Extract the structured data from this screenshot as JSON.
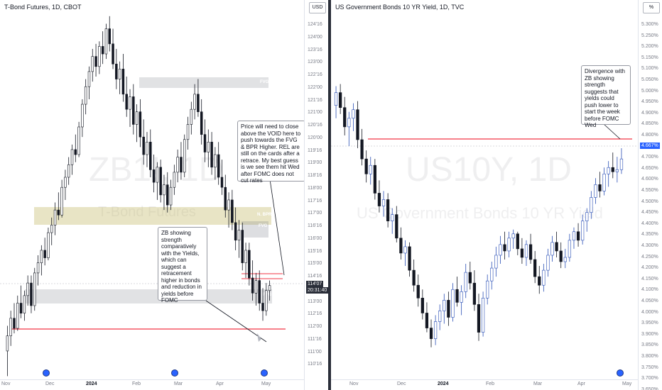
{
  "left_chart": {
    "title": "T-Bond Futures, 1D, CBOT",
    "currency_button": "USD",
    "watermark_symbol": "ZB1!, 1D",
    "watermark_name": "T-Bond Futures",
    "price_ticks": [
      "124'16",
      "124'00",
      "123'16",
      "123'00",
      "122'16",
      "122'00",
      "121'16",
      "121'00",
      "120'16",
      "120'00",
      "119'16",
      "119'00",
      "118'16",
      "118'00",
      "117'16",
      "117'00",
      "116'16",
      "116'00",
      "115'16",
      "115'00",
      "114'16",
      "113'16",
      "113'00",
      "112'16",
      "112'00",
      "111'16",
      "111'00",
      "110'16"
    ],
    "last_price": "114'07",
    "countdown": "20:31:40",
    "time_ticks": [
      "Nov",
      "Dec",
      "2024",
      "Feb",
      "Mar",
      "Apr",
      "May"
    ],
    "zones": {
      "fvg_top": "FVG",
      "bpr": "N. BPR",
      "fvg_mid": "FVG",
      "fvg_low": "FVG"
    },
    "note_top": "Price will need to close above the VOID here to push towards the FVG & BPR Higher. REL are still on the cards after a retrace. My best guess is we see them hit Wed after FOMC does not cut rates",
    "note_bottom": "ZB showing strength comparatively with the Yields, which can suggest a retracement higher in bonds and reduction in yields before FOMC",
    "candles": [
      {
        "o": 111.6,
        "h": 112.6,
        "l": 110.6,
        "c": 112.2
      },
      {
        "o": 112.2,
        "h": 113.2,
        "l": 111.8,
        "c": 112.9
      },
      {
        "o": 112.9,
        "h": 113.5,
        "l": 112.3,
        "c": 112.5
      },
      {
        "o": 112.5,
        "h": 113.8,
        "l": 112.4,
        "c": 113.5
      },
      {
        "o": 113.5,
        "h": 114.2,
        "l": 112.9,
        "c": 113.1
      },
      {
        "o": 113.1,
        "h": 114.0,
        "l": 112.8,
        "c": 113.8
      },
      {
        "o": 113.8,
        "h": 114.6,
        "l": 113.4,
        "c": 114.3
      },
      {
        "o": 114.3,
        "h": 114.6,
        "l": 113.1,
        "c": 113.4
      },
      {
        "o": 113.4,
        "h": 114.9,
        "l": 113.2,
        "c": 114.7
      },
      {
        "o": 114.7,
        "h": 115.4,
        "l": 114.2,
        "c": 115.1
      },
      {
        "o": 115.1,
        "h": 115.8,
        "l": 114.6,
        "c": 115.6
      },
      {
        "o": 115.6,
        "h": 116.1,
        "l": 115.0,
        "c": 115.3
      },
      {
        "o": 115.3,
        "h": 116.5,
        "l": 115.2,
        "c": 116.3
      },
      {
        "o": 116.3,
        "h": 116.9,
        "l": 115.8,
        "c": 116.6
      },
      {
        "o": 116.6,
        "h": 117.5,
        "l": 116.2,
        "c": 117.2
      },
      {
        "o": 117.2,
        "h": 117.9,
        "l": 116.8,
        "c": 117.0
      },
      {
        "o": 117.0,
        "h": 118.4,
        "l": 116.9,
        "c": 118.1
      },
      {
        "o": 118.1,
        "h": 118.8,
        "l": 117.6,
        "c": 118.5
      },
      {
        "o": 118.5,
        "h": 119.3,
        "l": 118.2,
        "c": 119.0
      },
      {
        "o": 119.0,
        "h": 119.8,
        "l": 118.6,
        "c": 119.6
      },
      {
        "o": 119.6,
        "h": 120.2,
        "l": 119.1,
        "c": 119.4
      },
      {
        "o": 119.4,
        "h": 120.7,
        "l": 119.3,
        "c": 120.5
      },
      {
        "o": 120.5,
        "h": 121.6,
        "l": 120.1,
        "c": 121.4
      },
      {
        "o": 121.4,
        "h": 122.4,
        "l": 121.0,
        "c": 122.1
      },
      {
        "o": 122.1,
        "h": 122.9,
        "l": 121.6,
        "c": 122.7
      },
      {
        "o": 122.7,
        "h": 123.6,
        "l": 122.3,
        "c": 123.3
      },
      {
        "o": 123.3,
        "h": 123.8,
        "l": 122.5,
        "c": 122.9
      },
      {
        "o": 122.9,
        "h": 123.9,
        "l": 122.6,
        "c": 123.7
      },
      {
        "o": 123.7,
        "h": 124.3,
        "l": 123.0,
        "c": 123.4
      },
      {
        "o": 123.4,
        "h": 124.6,
        "l": 123.2,
        "c": 124.4
      },
      {
        "o": 124.4,
        "h": 124.9,
        "l": 123.5,
        "c": 123.8
      },
      {
        "o": 123.8,
        "h": 124.4,
        "l": 122.8,
        "c": 123.0
      },
      {
        "o": 123.0,
        "h": 123.6,
        "l": 122.0,
        "c": 122.4
      },
      {
        "o": 122.4,
        "h": 123.1,
        "l": 121.8,
        "c": 122.8
      },
      {
        "o": 122.8,
        "h": 123.4,
        "l": 121.5,
        "c": 121.8
      },
      {
        "o": 121.8,
        "h": 122.5,
        "l": 120.9,
        "c": 121.2
      },
      {
        "o": 121.2,
        "h": 122.0,
        "l": 120.5,
        "c": 121.7
      },
      {
        "o": 121.7,
        "h": 122.2,
        "l": 120.2,
        "c": 120.6
      },
      {
        "o": 120.6,
        "h": 121.4,
        "l": 119.9,
        "c": 121.1
      },
      {
        "o": 121.1,
        "h": 121.6,
        "l": 119.7,
        "c": 120.1
      },
      {
        "o": 120.1,
        "h": 120.8,
        "l": 119.0,
        "c": 119.4
      },
      {
        "o": 119.4,
        "h": 120.3,
        "l": 118.9,
        "c": 119.9
      },
      {
        "o": 119.9,
        "h": 120.4,
        "l": 118.5,
        "c": 118.8
      },
      {
        "o": 118.8,
        "h": 119.4,
        "l": 117.9,
        "c": 118.3
      },
      {
        "o": 118.3,
        "h": 119.1,
        "l": 117.6,
        "c": 118.9
      },
      {
        "o": 118.9,
        "h": 119.2,
        "l": 117.5,
        "c": 117.8
      },
      {
        "o": 117.8,
        "h": 118.6,
        "l": 117.2,
        "c": 118.2
      },
      {
        "o": 118.2,
        "h": 118.7,
        "l": 117.1,
        "c": 117.4
      },
      {
        "o": 117.4,
        "h": 118.4,
        "l": 117.2,
        "c": 118.1
      },
      {
        "o": 118.1,
        "h": 119.0,
        "l": 117.8,
        "c": 118.7
      },
      {
        "o": 118.7,
        "h": 119.6,
        "l": 118.3,
        "c": 119.3
      },
      {
        "o": 119.3,
        "h": 119.9,
        "l": 118.4,
        "c": 118.7
      },
      {
        "o": 118.7,
        "h": 120.2,
        "l": 118.5,
        "c": 120.0
      },
      {
        "o": 120.0,
        "h": 120.9,
        "l": 119.6,
        "c": 120.6
      },
      {
        "o": 120.6,
        "h": 121.5,
        "l": 120.2,
        "c": 121.2
      },
      {
        "o": 121.2,
        "h": 122.2,
        "l": 120.8,
        "c": 121.8
      },
      {
        "o": 121.8,
        "h": 122.4,
        "l": 120.9,
        "c": 121.1
      },
      {
        "o": 121.1,
        "h": 121.6,
        "l": 119.8,
        "c": 120.2
      },
      {
        "o": 120.2,
        "h": 120.8,
        "l": 119.1,
        "c": 119.5
      },
      {
        "o": 119.5,
        "h": 120.4,
        "l": 118.9,
        "c": 119.9
      },
      {
        "o": 119.9,
        "h": 120.3,
        "l": 118.6,
        "c": 118.9
      },
      {
        "o": 118.9,
        "h": 119.7,
        "l": 118.4,
        "c": 119.4
      },
      {
        "o": 119.4,
        "h": 119.9,
        "l": 118.2,
        "c": 118.5
      },
      {
        "o": 118.5,
        "h": 119.2,
        "l": 117.8,
        "c": 118.1
      },
      {
        "o": 118.1,
        "h": 118.6,
        "l": 116.9,
        "c": 117.2
      },
      {
        "o": 117.2,
        "h": 117.9,
        "l": 116.5,
        "c": 117.6
      },
      {
        "o": 117.6,
        "h": 118.0,
        "l": 116.4,
        "c": 116.7
      },
      {
        "o": 116.7,
        "h": 117.3,
        "l": 115.6,
        "c": 116.0
      },
      {
        "o": 116.0,
        "h": 116.8,
        "l": 115.3,
        "c": 116.4
      },
      {
        "o": 116.4,
        "h": 116.7,
        "l": 114.8,
        "c": 115.1
      },
      {
        "o": 115.1,
        "h": 115.9,
        "l": 114.5,
        "c": 115.6
      },
      {
        "o": 115.6,
        "h": 115.9,
        "l": 114.2,
        "c": 114.5
      },
      {
        "o": 114.5,
        "h": 115.2,
        "l": 113.6,
        "c": 113.9
      },
      {
        "o": 113.9,
        "h": 114.7,
        "l": 113.4,
        "c": 114.4
      },
      {
        "o": 114.4,
        "h": 114.8,
        "l": 113.2,
        "c": 113.5
      },
      {
        "o": 113.5,
        "h": 114.1,
        "l": 112.8,
        "c": 113.2
      },
      {
        "o": 113.2,
        "h": 114.3,
        "l": 113.0,
        "c": 114.0
      },
      {
        "o": 114.0,
        "h": 114.4,
        "l": 113.6,
        "c": 114.2
      }
    ]
  },
  "right_chart": {
    "title": "US Government Bonds 10 YR Yield, 1D, TVC",
    "percent_button": "%",
    "watermark_symbol": "US10Y, 1D",
    "watermark_name": "US Government Bonds 10 YR Yield",
    "price_ticks": [
      "5.300%",
      "5.250%",
      "5.200%",
      "5.150%",
      "5.100%",
      "5.050%",
      "5.000%",
      "4.950%",
      "4.900%",
      "4.850%",
      "4.800%",
      "4.750%",
      "4.700%",
      "4.650%",
      "4.600%",
      "4.550%",
      "4.500%",
      "4.450%",
      "4.400%",
      "4.350%",
      "4.300%",
      "4.250%",
      "4.200%",
      "4.150%",
      "4.100%",
      "4.050%",
      "4.000%",
      "3.950%",
      "3.900%",
      "3.850%",
      "3.800%",
      "3.750%",
      "3.700%",
      "3.650%"
    ],
    "last_price": "4.667%",
    "time_ticks": [
      "Nov",
      "Dec",
      "2024",
      "Feb",
      "Mar",
      "Apr",
      "May"
    ],
    "note": "Divergence with ZB showing strength suggests that yields could push lower to start the week before FOMC Wed",
    "colors": {
      "up": "#2a4fb6",
      "down": "#131722",
      "line": "#f23645"
    },
    "candles": [
      {
        "o": 4.92,
        "h": 5.01,
        "l": 4.86,
        "c": 4.98
      },
      {
        "o": 4.98,
        "h": 5.02,
        "l": 4.88,
        "c": 4.91
      },
      {
        "o": 4.91,
        "h": 4.96,
        "l": 4.78,
        "c": 4.82
      },
      {
        "o": 4.82,
        "h": 4.89,
        "l": 4.73,
        "c": 4.86
      },
      {
        "o": 4.86,
        "h": 4.93,
        "l": 4.8,
        "c": 4.9
      },
      {
        "o": 4.9,
        "h": 4.94,
        "l": 4.72,
        "c": 4.76
      },
      {
        "o": 4.76,
        "h": 4.81,
        "l": 4.64,
        "c": 4.67
      },
      {
        "o": 4.67,
        "h": 4.71,
        "l": 4.56,
        "c": 4.6
      },
      {
        "o": 4.6,
        "h": 4.68,
        "l": 4.55,
        "c": 4.64
      },
      {
        "o": 4.64,
        "h": 4.67,
        "l": 4.48,
        "c": 4.51
      },
      {
        "o": 4.51,
        "h": 4.57,
        "l": 4.42,
        "c": 4.45
      },
      {
        "o": 4.45,
        "h": 4.52,
        "l": 4.4,
        "c": 4.48
      },
      {
        "o": 4.48,
        "h": 4.51,
        "l": 4.35,
        "c": 4.38
      },
      {
        "o": 4.38,
        "h": 4.44,
        "l": 4.32,
        "c": 4.41
      },
      {
        "o": 4.41,
        "h": 4.45,
        "l": 4.28,
        "c": 4.3
      },
      {
        "o": 4.3,
        "h": 4.35,
        "l": 4.2,
        "c": 4.23
      },
      {
        "o": 4.23,
        "h": 4.29,
        "l": 4.17,
        "c": 4.26
      },
      {
        "o": 4.26,
        "h": 4.28,
        "l": 4.12,
        "c": 4.15
      },
      {
        "o": 4.15,
        "h": 4.2,
        "l": 4.05,
        "c": 4.08
      },
      {
        "o": 4.08,
        "h": 4.13,
        "l": 3.98,
        "c": 4.02
      },
      {
        "o": 4.02,
        "h": 4.06,
        "l": 3.92,
        "c": 3.95
      },
      {
        "o": 3.95,
        "h": 4.0,
        "l": 3.86,
        "c": 3.88
      },
      {
        "o": 3.88,
        "h": 3.92,
        "l": 3.79,
        "c": 3.83
      },
      {
        "o": 3.83,
        "h": 3.94,
        "l": 3.8,
        "c": 3.91
      },
      {
        "o": 3.91,
        "h": 3.99,
        "l": 3.87,
        "c": 3.96
      },
      {
        "o": 3.96,
        "h": 4.04,
        "l": 3.9,
        "c": 4.01
      },
      {
        "o": 4.01,
        "h": 4.05,
        "l": 3.89,
        "c": 3.93
      },
      {
        "o": 3.93,
        "h": 4.09,
        "l": 3.91,
        "c": 4.06
      },
      {
        "o": 4.06,
        "h": 4.12,
        "l": 3.98,
        "c": 4.0
      },
      {
        "o": 4.0,
        "h": 4.08,
        "l": 3.94,
        "c": 4.05
      },
      {
        "o": 4.05,
        "h": 4.18,
        "l": 4.02,
        "c": 4.14
      },
      {
        "o": 4.14,
        "h": 4.19,
        "l": 4.06,
        "c": 4.09
      },
      {
        "o": 4.09,
        "h": 4.15,
        "l": 3.96,
        "c": 3.99
      },
      {
        "o": 3.99,
        "h": 4.04,
        "l": 3.82,
        "c": 3.86
      },
      {
        "o": 3.86,
        "h": 4.05,
        "l": 3.84,
        "c": 4.02
      },
      {
        "o": 4.02,
        "h": 4.13,
        "l": 3.99,
        "c": 4.1
      },
      {
        "o": 4.1,
        "h": 4.19,
        "l": 4.06,
        "c": 4.16
      },
      {
        "o": 4.16,
        "h": 4.26,
        "l": 4.12,
        "c": 4.22
      },
      {
        "o": 4.22,
        "h": 4.31,
        "l": 4.18,
        "c": 4.27
      },
      {
        "o": 4.27,
        "h": 4.33,
        "l": 4.2,
        "c": 4.24
      },
      {
        "o": 4.24,
        "h": 4.33,
        "l": 4.21,
        "c": 4.3
      },
      {
        "o": 4.3,
        "h": 4.34,
        "l": 4.25,
        "c": 4.32
      },
      {
        "o": 4.32,
        "h": 4.33,
        "l": 4.22,
        "c": 4.25
      },
      {
        "o": 4.25,
        "h": 4.3,
        "l": 4.18,
        "c": 4.21
      },
      {
        "o": 4.21,
        "h": 4.29,
        "l": 4.17,
        "c": 4.27
      },
      {
        "o": 4.27,
        "h": 4.32,
        "l": 4.18,
        "c": 4.2
      },
      {
        "o": 4.2,
        "h": 4.24,
        "l": 4.09,
        "c": 4.12
      },
      {
        "o": 4.12,
        "h": 4.17,
        "l": 4.04,
        "c": 4.08
      },
      {
        "o": 4.08,
        "h": 4.18,
        "l": 4.05,
        "c": 4.15
      },
      {
        "o": 4.15,
        "h": 4.25,
        "l": 4.12,
        "c": 4.22
      },
      {
        "o": 4.22,
        "h": 4.31,
        "l": 4.19,
        "c": 4.28
      },
      {
        "o": 4.28,
        "h": 4.33,
        "l": 4.21,
        "c": 4.24
      },
      {
        "o": 4.24,
        "h": 4.28,
        "l": 4.16,
        "c": 4.19
      },
      {
        "o": 4.19,
        "h": 4.25,
        "l": 4.16,
        "c": 4.21
      },
      {
        "o": 4.21,
        "h": 4.32,
        "l": 4.19,
        "c": 4.29
      },
      {
        "o": 4.29,
        "h": 4.35,
        "l": 4.25,
        "c": 4.33
      },
      {
        "o": 4.33,
        "h": 4.37,
        "l": 4.26,
        "c": 4.29
      },
      {
        "o": 4.29,
        "h": 4.41,
        "l": 4.27,
        "c": 4.38
      },
      {
        "o": 4.38,
        "h": 4.44,
        "l": 4.33,
        "c": 4.42
      },
      {
        "o": 4.42,
        "h": 4.52,
        "l": 4.39,
        "c": 4.49
      },
      {
        "o": 4.49,
        "h": 4.58,
        "l": 4.46,
        "c": 4.55
      },
      {
        "o": 4.55,
        "h": 4.61,
        "l": 4.49,
        "c": 4.52
      },
      {
        "o": 4.52,
        "h": 4.63,
        "l": 4.5,
        "c": 4.6
      },
      {
        "o": 4.6,
        "h": 4.66,
        "l": 4.54,
        "c": 4.63
      },
      {
        "o": 4.63,
        "h": 4.7,
        "l": 4.58,
        "c": 4.61
      },
      {
        "o": 4.61,
        "h": 4.68,
        "l": 4.56,
        "c": 4.62
      },
      {
        "o": 4.62,
        "h": 4.72,
        "l": 4.6,
        "c": 4.67
      }
    ]
  }
}
